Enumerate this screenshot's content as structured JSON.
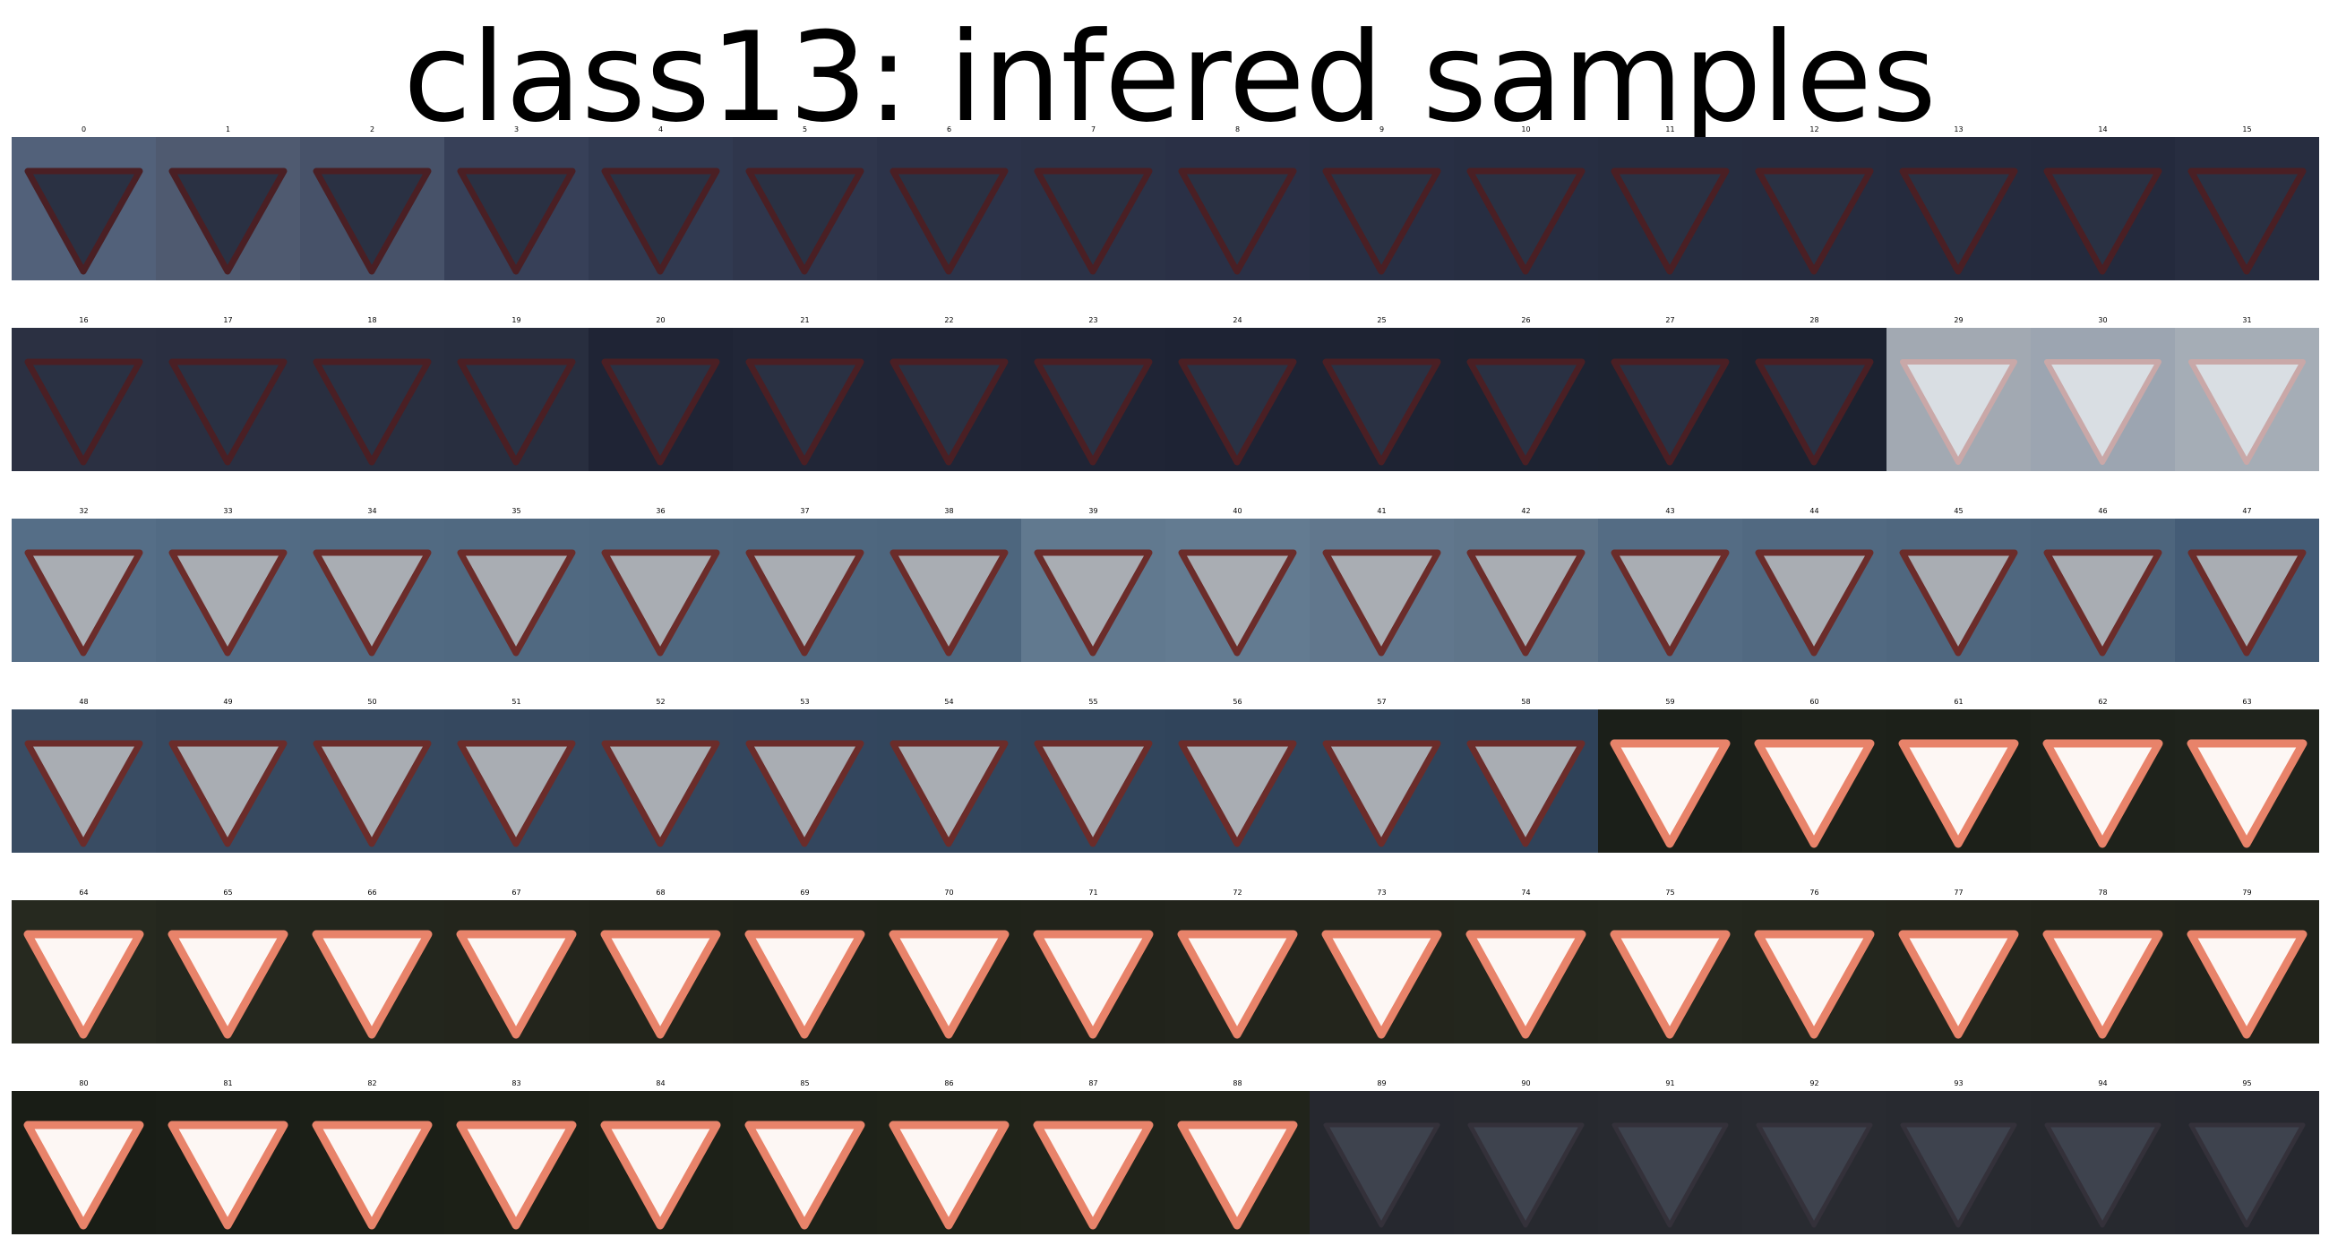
{
  "title": "class13: infered samples",
  "samples": [
    {
      "label": "0",
      "sign": "dark",
      "bg": "#5a6a85"
    },
    {
      "label": "1",
      "sign": "dark",
      "bg": "#56627a"
    },
    {
      "label": "2",
      "sign": "dark",
      "bg": "#4e5a72"
    },
    {
      "label": "3",
      "sign": "dark",
      "bg": "#3c4660"
    },
    {
      "label": "4",
      "sign": "dark",
      "bg": "#363f58"
    },
    {
      "label": "5",
      "sign": "dark",
      "bg": "#333b53"
    },
    {
      "label": "6",
      "sign": "dark",
      "bg": "#303850"
    },
    {
      "label": "7",
      "sign": "dark",
      "bg": "#2f374e"
    },
    {
      "label": "8",
      "sign": "dark",
      "bg": "#2e354c"
    },
    {
      "label": "9",
      "sign": "dark",
      "bg": "#2c344a"
    },
    {
      "label": "10",
      "sign": "dark",
      "bg": "#2b3248"
    },
    {
      "label": "11",
      "sign": "dark",
      "bg": "#2a3146"
    },
    {
      "label": "12",
      "sign": "dark",
      "bg": "#2a3045"
    },
    {
      "label": "13",
      "sign": "dark",
      "bg": "#292f44"
    },
    {
      "label": "14",
      "sign": "dark",
      "bg": "#282e43"
    },
    {
      "label": "15",
      "sign": "dark",
      "bg": "#2b3146"
    },
    {
      "label": "16",
      "sign": "dark",
      "bg": "#2f3548"
    },
    {
      "label": "17",
      "sign": "dark",
      "bg": "#2e3447"
    },
    {
      "label": "18",
      "sign": "dark",
      "bg": "#2d3346"
    },
    {
      "label": "19",
      "sign": "dark",
      "bg": "#2c3245"
    },
    {
      "label": "20",
      "sign": "dark",
      "bg": "#22283a"
    },
    {
      "label": "21",
      "sign": "dark",
      "bg": "#242a3c"
    },
    {
      "label": "22",
      "sign": "dark",
      "bg": "#23293b"
    },
    {
      "label": "23",
      "sign": "dark",
      "bg": "#22283a"
    },
    {
      "label": "24",
      "sign": "dark",
      "bg": "#212739"
    },
    {
      "label": "25",
      "sign": "dark",
      "bg": "#212738"
    },
    {
      "label": "26",
      "sign": "dark",
      "bg": "#202637"
    },
    {
      "label": "27",
      "sign": "dark",
      "bg": "#202636"
    },
    {
      "label": "28",
      "sign": "dark",
      "bg": "#1f2535"
    },
    {
      "label": "29",
      "sign": "faded",
      "bg": "#b0b8c2"
    },
    {
      "label": "30",
      "sign": "faded",
      "bg": "#aab4c0"
    },
    {
      "label": "31",
      "sign": "faded",
      "bg": "#b4bcc6"
    },
    {
      "label": "32",
      "sign": "grey",
      "bg": "#5d7893"
    },
    {
      "label": "33",
      "sign": "grey",
      "bg": "#5a7590"
    },
    {
      "label": "34",
      "sign": "grey",
      "bg": "#58738e"
    },
    {
      "label": "35",
      "sign": "grey",
      "bg": "#57728c"
    },
    {
      "label": "36",
      "sign": "grey",
      "bg": "#56718b"
    },
    {
      "label": "37",
      "sign": "grey",
      "bg": "#55708a"
    },
    {
      "label": "38",
      "sign": "grey",
      "bg": "#546f89"
    },
    {
      "label": "39",
      "sign": "grey",
      "bg": "#6a849c"
    },
    {
      "label": "40",
      "sign": "grey",
      "bg": "#6c869e"
    },
    {
      "label": "41",
      "sign": "grey",
      "bg": "#6a8299"
    },
    {
      "label": "42",
      "sign": "grey",
      "bg": "#687f96"
    },
    {
      "label": "43",
      "sign": "grey",
      "bg": "#5c7690"
    },
    {
      "label": "44",
      "sign": "grey",
      "bg": "#58728c"
    },
    {
      "label": "45",
      "sign": "grey",
      "bg": "#56708a"
    },
    {
      "label": "46",
      "sign": "grey",
      "bg": "#546e88"
    },
    {
      "label": "47",
      "sign": "grey",
      "bg": "#4a6480"
    },
    {
      "label": "48",
      "sign": "grey",
      "bg": "#3e536c"
    },
    {
      "label": "49",
      "sign": "grey",
      "bg": "#3c516a"
    },
    {
      "label": "50",
      "sign": "grey",
      "bg": "#3b5069"
    },
    {
      "label": "51",
      "sign": "grey",
      "bg": "#3a4f68"
    },
    {
      "label": "52",
      "sign": "grey",
      "bg": "#394e67"
    },
    {
      "label": "53",
      "sign": "grey",
      "bg": "#384d66"
    },
    {
      "label": "54",
      "sign": "grey",
      "bg": "#374c65"
    },
    {
      "label": "55",
      "sign": "grey",
      "bg": "#364b64"
    },
    {
      "label": "56",
      "sign": "grey",
      "bg": "#354a63"
    },
    {
      "label": "57",
      "sign": "grey",
      "bg": "#344962"
    },
    {
      "label": "58",
      "sign": "grey",
      "bg": "#334861"
    },
    {
      "label": "59",
      "sign": "white",
      "bg": "#1e221c"
    },
    {
      "label": "60",
      "sign": "white",
      "bg": "#20241d"
    },
    {
      "label": "61",
      "sign": "white",
      "bg": "#1f231c"
    },
    {
      "label": "62",
      "sign": "white",
      "bg": "#21251e"
    },
    {
      "label": "63",
      "sign": "white",
      "bg": "#22261f"
    },
    {
      "label": "64",
      "sign": "white",
      "bg": "#2a2d22"
    },
    {
      "label": "65",
      "sign": "white",
      "bg": "#282b21"
    },
    {
      "label": "66",
      "sign": "white",
      "bg": "#272a20"
    },
    {
      "label": "67",
      "sign": "white",
      "bg": "#26291f"
    },
    {
      "label": "68",
      "sign": "white",
      "bg": "#25281e"
    },
    {
      "label": "69",
      "sign": "white",
      "bg": "#24271e"
    },
    {
      "label": "70",
      "sign": "white",
      "bg": "#23261d"
    },
    {
      "label": "71",
      "sign": "white",
      "bg": "#24271e"
    },
    {
      "label": "72",
      "sign": "white",
      "bg": "#25281f"
    },
    {
      "label": "73",
      "sign": "white",
      "bg": "#26291f"
    },
    {
      "label": "74",
      "sign": "white",
      "bg": "#272a20"
    },
    {
      "label": "75",
      "sign": "white",
      "bg": "#282b21"
    },
    {
      "label": "76",
      "sign": "white",
      "bg": "#272a20"
    },
    {
      "label": "77",
      "sign": "white",
      "bg": "#26291f"
    },
    {
      "label": "78",
      "sign": "white",
      "bg": "#25281e"
    },
    {
      "label": "79",
      "sign": "white",
      "bg": "#24271e"
    },
    {
      "label": "80",
      "sign": "white",
      "bg": "#1c2018"
    },
    {
      "label": "81",
      "sign": "white",
      "bg": "#1d2119"
    },
    {
      "label": "82",
      "sign": "white",
      "bg": "#1e2219"
    },
    {
      "label": "83",
      "sign": "white",
      "bg": "#1f231a"
    },
    {
      "label": "84",
      "sign": "white",
      "bg": "#20241b"
    },
    {
      "label": "85",
      "sign": "white",
      "bg": "#21251c"
    },
    {
      "label": "86",
      "sign": "white",
      "bg": "#22261c"
    },
    {
      "label": "87",
      "sign": "white",
      "bg": "#23271d"
    },
    {
      "label": "88",
      "sign": "white",
      "bg": "#24281e"
    },
    {
      "label": "89",
      "sign": "dim",
      "bg": "#2a2c33"
    },
    {
      "label": "90",
      "sign": "dim",
      "bg": "#2b2d34"
    },
    {
      "label": "91",
      "sign": "dim",
      "bg": "#2c2e35"
    },
    {
      "label": "92",
      "sign": "dim",
      "bg": "#2d2f36"
    },
    {
      "label": "93",
      "sign": "dim",
      "bg": "#2c2e35"
    },
    {
      "label": "94",
      "sign": "dim",
      "bg": "#2b2d34"
    },
    {
      "label": "95",
      "sign": "dim",
      "bg": "#2a2c33"
    }
  ]
}
